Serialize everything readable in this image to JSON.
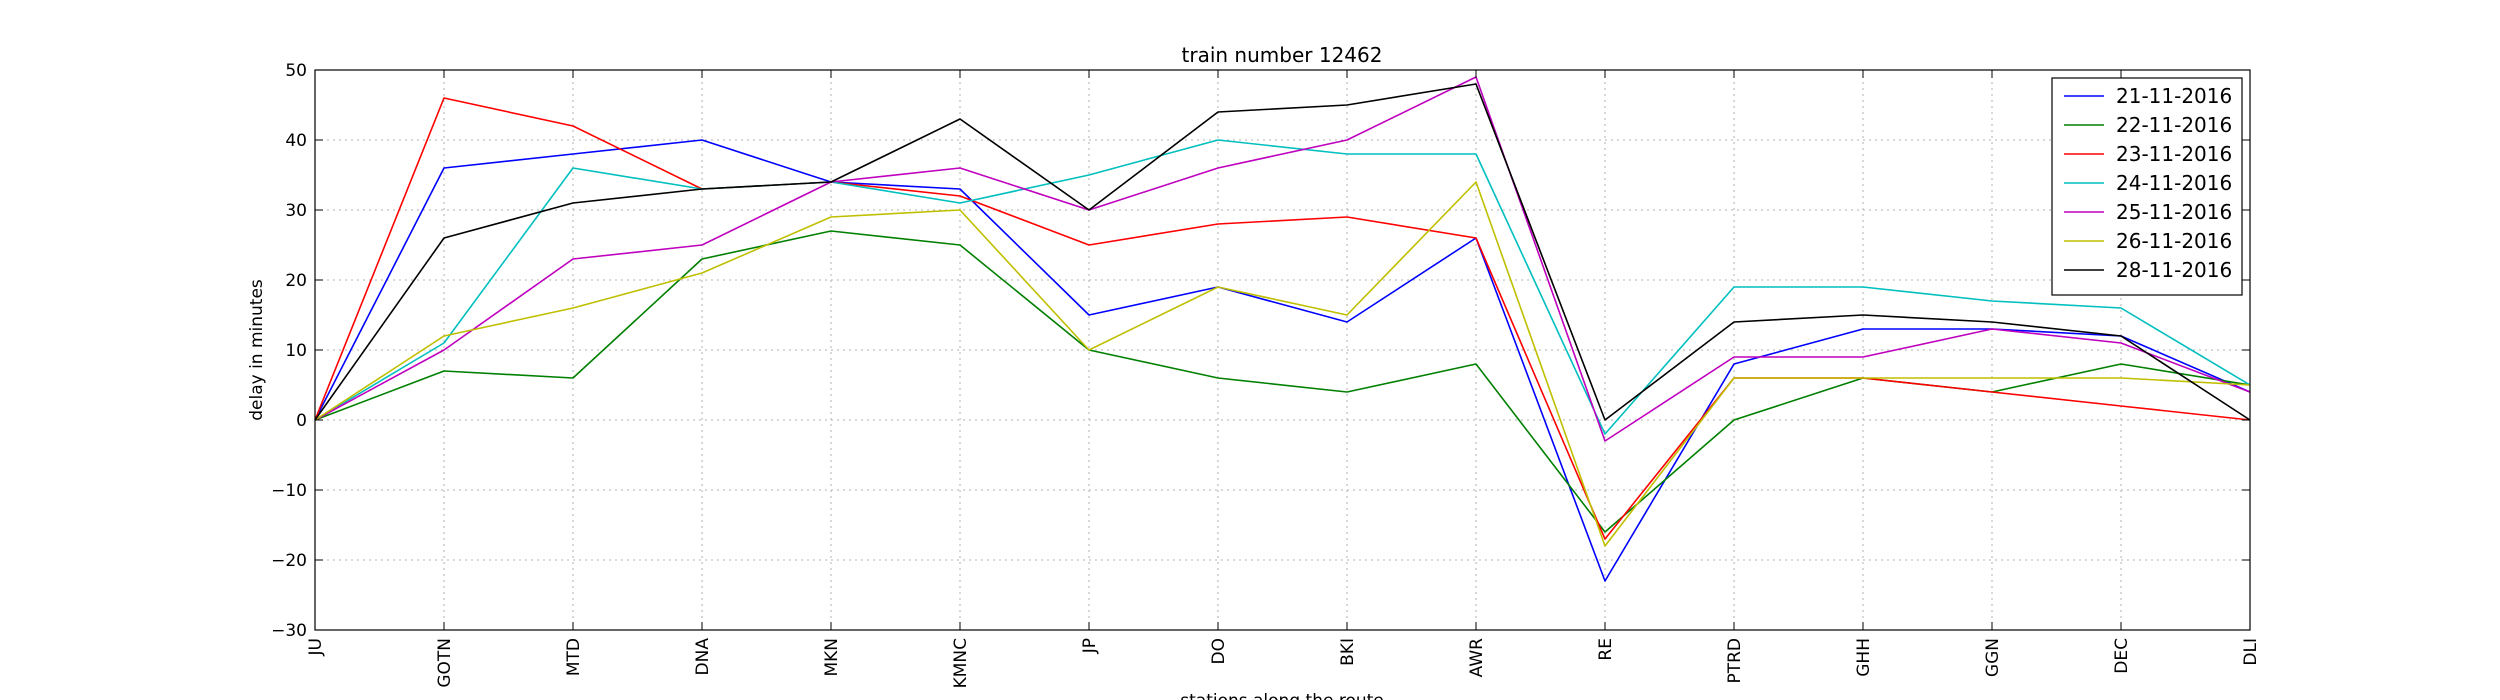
{
  "chart_data": {
    "type": "line",
    "title": "train number 12462",
    "xlabel": "stations along the route",
    "ylabel": "delay in minutes",
    "categories": [
      "JU",
      "GOTN",
      "MTD",
      "DNA",
      "MKN",
      "KMNC",
      "JP",
      "DO",
      "BKI",
      "AWR",
      "RE",
      "PTRD",
      "GHH",
      "GGN",
      "DEC",
      "DLI"
    ],
    "ylim": [
      -30,
      50
    ],
    "yticks": [
      -30,
      -20,
      -10,
      0,
      10,
      20,
      30,
      40,
      50
    ],
    "grid": true,
    "legend_position": "top-right",
    "series": [
      {
        "name": "21-11-2016",
        "color": "#0000ff",
        "values": [
          0,
          36,
          38,
          40,
          34,
          33,
          15,
          19,
          14,
          26,
          -23,
          8,
          13,
          13,
          12,
          4
        ]
      },
      {
        "name": "22-11-2016",
        "color": "#008000",
        "values": [
          0,
          7,
          6,
          23,
          27,
          25,
          10,
          6,
          4,
          8,
          -16,
          0,
          6,
          4,
          8,
          5
        ]
      },
      {
        "name": "23-11-2016",
        "color": "#ff0000",
        "values": [
          0,
          46,
          42,
          33,
          34,
          32,
          25,
          28,
          29,
          26,
          -17,
          6,
          6,
          4,
          2,
          0
        ]
      },
      {
        "name": "24-11-2016",
        "color": "#00bfbf",
        "values": [
          0,
          11,
          36,
          33,
          34,
          31,
          35,
          40,
          38,
          38,
          -2,
          19,
          19,
          17,
          16,
          5
        ]
      },
      {
        "name": "25-11-2016",
        "color": "#bf00bf",
        "values": [
          0,
          10,
          23,
          25,
          34,
          36,
          30,
          36,
          40,
          49,
          -3,
          9,
          9,
          13,
          11,
          4
        ]
      },
      {
        "name": "26-11-2016",
        "color": "#bfbf00",
        "values": [
          0,
          12,
          16,
          21,
          29,
          30,
          10,
          19,
          15,
          34,
          -18,
          6,
          6,
          6,
          6,
          5
        ]
      },
      {
        "name": "28-11-2016",
        "color": "#000000",
        "values": [
          0,
          26,
          31,
          33,
          34,
          43,
          30,
          44,
          45,
          48,
          0,
          14,
          15,
          14,
          12,
          0
        ]
      }
    ]
  }
}
